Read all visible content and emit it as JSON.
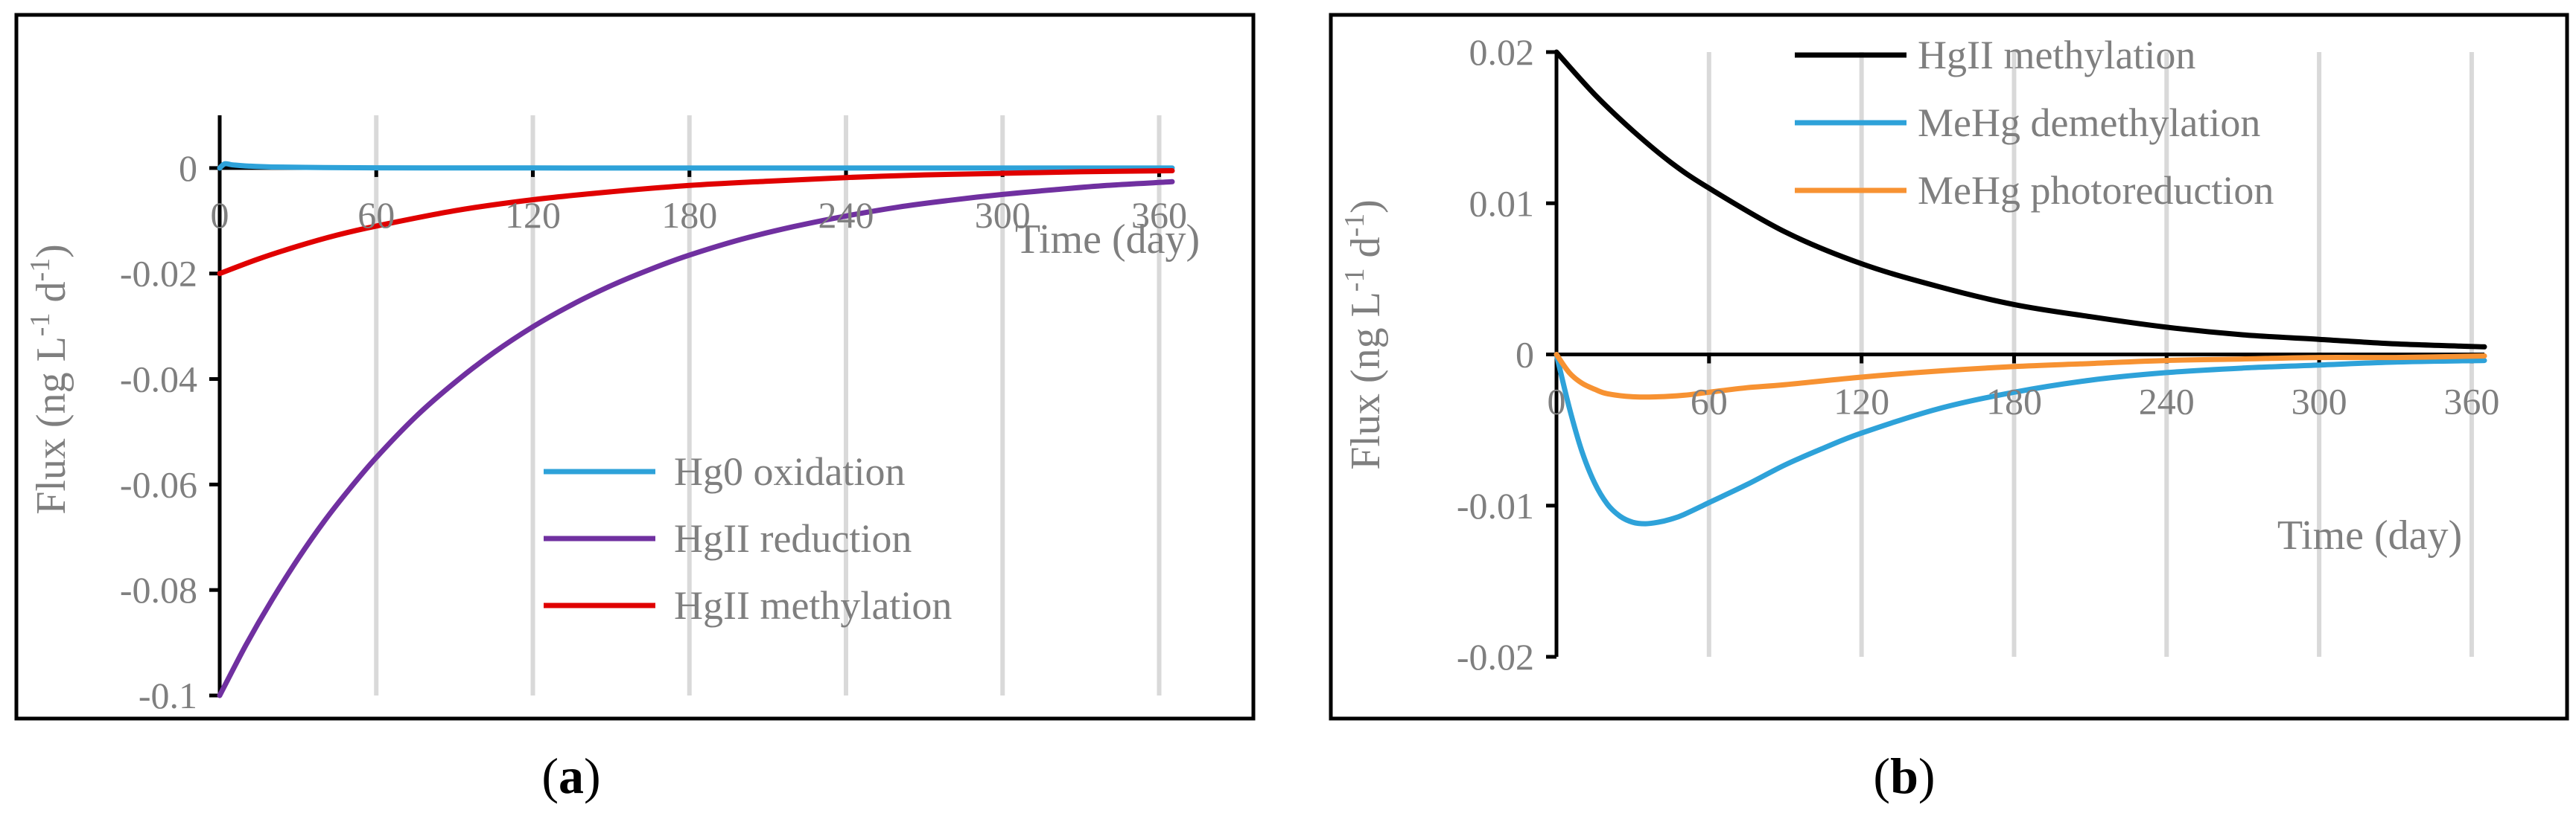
{
  "colors": {
    "black": "#000000",
    "blue": "#2ea2d9",
    "purple": "#7030a0",
    "red": "#e00000",
    "orange": "#f79232",
    "grid": "#d9d9d9",
    "text": "#7f7f7f"
  },
  "chart_data": [
    {
      "type": "line",
      "panel": "a",
      "caption_label": "a",
      "xlabel": "Time (day)",
      "ylabel": "Flux (ng L",
      "ylabel_unit_mid": " d",
      "ylabel_close": ")",
      "ylabel_sup": "-1",
      "ylabel_sup2": "-1",
      "xlim": [
        0,
        365
      ],
      "ylim": [
        -0.1,
        0.01
      ],
      "x_ticks": [
        0,
        60,
        120,
        180,
        240,
        300,
        360
      ],
      "x_tick_labels": [
        "0",
        "60",
        "120",
        "180",
        "240",
        "300",
        "360"
      ],
      "y_ticks": [
        0,
        -0.02,
        -0.04,
        -0.06,
        -0.08,
        -0.1
      ],
      "y_tick_labels": [
        "0",
        "-0.02",
        "-0.04",
        "-0.06",
        "-0.08",
        "-0.1"
      ],
      "legend_position": "bottom-right",
      "series": [
        {
          "name": "Hg0 oxidation",
          "color": "#2ea2d9",
          "x": [
            0,
            2,
            5,
            10,
            20,
            40,
            60,
            90,
            120,
            180,
            240,
            300,
            365
          ],
          "y": [
            0,
            0.0008,
            0.0006,
            0.0004,
            0.0002,
            0.0001,
            5e-05,
            2e-05,
            1e-05,
            0,
            0,
            0,
            0
          ]
        },
        {
          "name": "HgII reduction",
          "color": "#7030a0",
          "x": [
            0,
            10,
            20,
            30,
            40,
            50,
            60,
            75,
            90,
            105,
            120,
            135,
            150,
            165,
            180,
            200,
            220,
            240,
            260,
            280,
            300,
            320,
            340,
            365
          ],
          "y": [
            -0.1,
            -0.0905,
            -0.0819,
            -0.0741,
            -0.067,
            -0.0607,
            -0.0549,
            -0.0472,
            -0.0407,
            -0.035,
            -0.0301,
            -0.0259,
            -0.0223,
            -0.0192,
            -0.0165,
            -0.0135,
            -0.0111,
            -0.0091,
            -0.0074,
            -0.0061,
            -0.005,
            -0.0041,
            -0.0033,
            -0.0026
          ]
        },
        {
          "name": "HgII methylation",
          "color": "#e00000",
          "x": [
            0,
            15,
            30,
            45,
            60,
            90,
            120,
            150,
            180,
            210,
            240,
            270,
            300,
            330,
            365
          ],
          "y": [
            -0.02,
            -0.0172,
            -0.0148,
            -0.0127,
            -0.011,
            -0.0081,
            -0.006,
            -0.0045,
            -0.0033,
            -0.0025,
            -0.0018,
            -0.0013,
            -0.001,
            -0.0007,
            -0.0005
          ]
        }
      ]
    },
    {
      "type": "line",
      "panel": "b",
      "caption_label": "b",
      "xlabel": "Time (day)",
      "ylabel": "Flux (ng L",
      "ylabel_unit_mid": " d",
      "ylabel_close": ")",
      "ylabel_sup": "-1",
      "ylabel_sup2": "-1",
      "xlim": [
        0,
        365
      ],
      "ylim": [
        -0.02,
        0.02
      ],
      "x_ticks": [
        0,
        60,
        120,
        180,
        240,
        300,
        360
      ],
      "x_tick_labels": [
        "0",
        "60",
        "120",
        "180",
        "240",
        "300",
        "360"
      ],
      "y_ticks": [
        0.02,
        0.01,
        0,
        -0.01,
        -0.02
      ],
      "y_tick_labels": [
        "0.02",
        "0.01",
        "0",
        "-0.01",
        "-0.02"
      ],
      "legend_position": "top-right",
      "series": [
        {
          "name": "HgII methylation",
          "color": "#000000",
          "x": [
            0,
            15,
            30,
            45,
            60,
            90,
            120,
            150,
            180,
            210,
            240,
            270,
            300,
            330,
            365
          ],
          "y": [
            0.02,
            0.0172,
            0.0148,
            0.0127,
            0.011,
            0.0081,
            0.006,
            0.0045,
            0.0033,
            0.0025,
            0.0018,
            0.0013,
            0.001,
            0.0007,
            0.0005
          ]
        },
        {
          "name": "MeHg demethylation",
          "color": "#2ea2d9",
          "x": [
            0,
            5,
            10,
            15,
            20,
            25,
            30,
            35,
            40,
            45,
            50,
            60,
            75,
            90,
            105,
            120,
            150,
            180,
            210,
            240,
            270,
            300,
            330,
            365
          ],
          "y": [
            0,
            -0.0035,
            -0.0064,
            -0.0085,
            -0.0099,
            -0.0107,
            -0.0111,
            -0.0112,
            -0.0111,
            -0.0109,
            -0.0106,
            -0.0098,
            -0.0086,
            -0.0073,
            -0.0062,
            -0.0052,
            -0.0036,
            -0.0025,
            -0.0017,
            -0.0012,
            -0.0009,
            -0.0007,
            -0.0005,
            -0.0004
          ]
        },
        {
          "name": "MeHg photoreduction",
          "color": "#f79232",
          "x": [
            0,
            5,
            10,
            15,
            20,
            30,
            40,
            50,
            60,
            75,
            90,
            120,
            150,
            180,
            210,
            240,
            270,
            300,
            330,
            365
          ],
          "y": [
            0,
            -0.0012,
            -0.0019,
            -0.0023,
            -0.0026,
            -0.0028,
            -0.0028,
            -0.0027,
            -0.0025,
            -0.0022,
            -0.002,
            -0.0015,
            -0.0011,
            -0.0008,
            -0.0006,
            -0.0004,
            -0.0003,
            -0.0002,
            -0.0002,
            -0.0001
          ]
        }
      ]
    }
  ]
}
